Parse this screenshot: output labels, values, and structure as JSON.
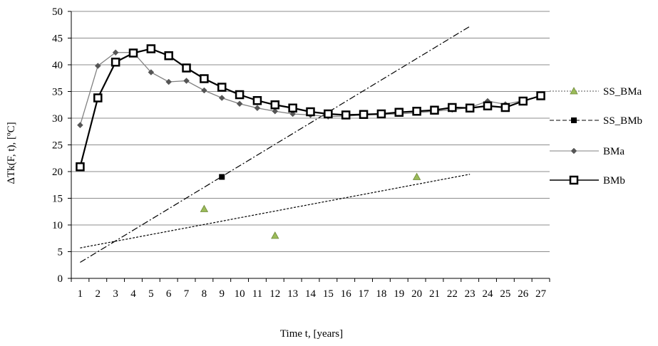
{
  "chart_data": {
    "type": "line",
    "xlabel": "Time t, [years]",
    "ylabel": "ΔTk(F, t), [ºC]",
    "categories": [
      "1",
      "2",
      "3",
      "4",
      "5",
      "6",
      "7",
      "8",
      "9",
      "10",
      "11",
      "12",
      "13",
      "14",
      "15",
      "16",
      "17",
      "18",
      "19",
      "20",
      "21",
      "22",
      "23",
      "24",
      "25",
      "26",
      "27"
    ],
    "ylim": [
      0,
      50
    ],
    "yticks": [
      "0",
      "5",
      "10",
      "15",
      "20",
      "25",
      "30",
      "35",
      "40",
      "45",
      "50"
    ],
    "grid": "horizontal",
    "legend_position": "right",
    "series": [
      {
        "name": "SS_BMa",
        "style": "markers-only",
        "marker": "triangle",
        "color": "#9bbb59",
        "points": [
          {
            "x": 8,
            "y": 13
          },
          {
            "x": 12,
            "y": 8
          },
          {
            "x": 20,
            "y": 19
          }
        ]
      },
      {
        "name": "SS_BMb",
        "style": "markers-only",
        "marker": "square",
        "color": "#000000",
        "points": [
          {
            "x": 9,
            "y": 19
          }
        ]
      },
      {
        "name": "BMa",
        "style": "line",
        "marker": "diamond",
        "color": "#808080",
        "values": [
          28.7,
          39.8,
          42.3,
          42.3,
          38.6,
          36.8,
          37.0,
          35.2,
          33.8,
          32.7,
          31.9,
          31.3,
          30.8,
          30.6,
          30.3,
          30.4,
          30.6,
          30.7,
          30.8,
          31.0,
          31.3,
          31.6,
          32.0,
          33.2,
          32.6,
          33.3,
          34.2
        ]
      },
      {
        "name": "BMb",
        "style": "line",
        "marker": "open-square",
        "color": "#000000",
        "values": [
          20.9,
          33.8,
          40.5,
          42.2,
          43.0,
          41.7,
          39.4,
          37.4,
          35.8,
          34.4,
          33.3,
          32.5,
          31.9,
          31.2,
          30.8,
          30.6,
          30.7,
          30.8,
          31.1,
          31.3,
          31.5,
          32.0,
          31.9,
          32.3,
          32.0,
          33.2,
          34.2
        ]
      }
    ],
    "trendlines": [
      {
        "series": "SS_BMa",
        "style": "dotted",
        "from": {
          "x": 1,
          "y": 5.7
        },
        "to": {
          "x": 23,
          "y": 19.5
        }
      },
      {
        "series": "SS_BMb",
        "style": "dash-dot",
        "from": {
          "x": 1,
          "y": 3.0
        },
        "to": {
          "x": 23,
          "y": 47.2
        }
      }
    ]
  }
}
